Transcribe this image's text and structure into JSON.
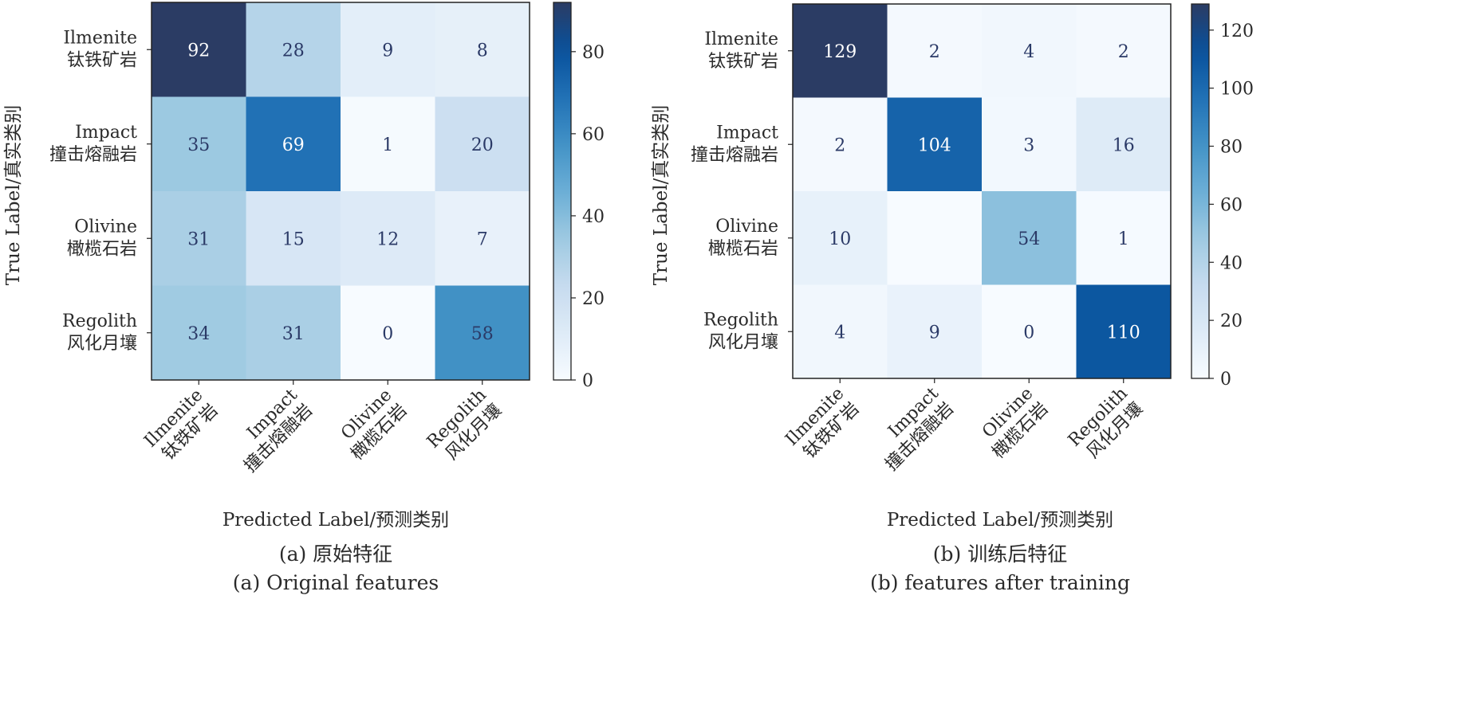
{
  "colormap": {
    "name": "Blues",
    "stops": [
      "#f7fbff",
      "#deebf7",
      "#c6dbef",
      "#9ecae1",
      "#6baed6",
      "#4292c6",
      "#2171b5",
      "#08519c",
      "#08306b"
    ],
    "display_top": "#2b3c64"
  },
  "chart_data": [
    {
      "type": "heatmap",
      "panel": "a",
      "caption_cn": "(a) 原始特征",
      "caption_en": "(a) Original features",
      "ylabel": "True Label/真实类别",
      "xlabel": "Predicted Label/预测类别",
      "rows": [
        {
          "en": "Ilmenite",
          "cn": "钛铁矿岩"
        },
        {
          "en": "Impact",
          "cn": "撞击熔融岩"
        },
        {
          "en": "Olivine",
          "cn": "橄榄石岩"
        },
        {
          "en": "Regolith",
          "cn": "风化月壤"
        }
      ],
      "cols": [
        {
          "en": "Ilmenite",
          "cn": "钛铁矿岩"
        },
        {
          "en": "Impact",
          "cn": "撞击熔融岩"
        },
        {
          "en": "Olivine",
          "cn": "橄榄石岩"
        },
        {
          "en": "Regolith",
          "cn": "风化月壤"
        }
      ],
      "matrix": [
        [
          92,
          28,
          9,
          8
        ],
        [
          35,
          69,
          1,
          20
        ],
        [
          31,
          15,
          12,
          7
        ],
        [
          34,
          31,
          0,
          58
        ]
      ],
      "value_labels": [
        [
          "92",
          "28",
          "9",
          "8"
        ],
        [
          "35",
          "69",
          "1",
          "20"
        ],
        [
          "31",
          "15",
          "12",
          "7"
        ],
        [
          "34",
          "31",
          "0",
          "58"
        ]
      ],
      "colorbar": {
        "min": 0,
        "max": 92,
        "ticks": [
          0,
          20,
          40,
          60,
          80
        ],
        "tick_labels": [
          "0",
          "20",
          "40",
          "60",
          "80"
        ]
      }
    },
    {
      "type": "heatmap",
      "panel": "b",
      "caption_cn": "(b) 训练后特征",
      "caption_en": "(b) features after training",
      "ylabel": "True Label/真实类别",
      "xlabel": "Predicted Label/预测类别",
      "rows": [
        {
          "en": "Ilmenite",
          "cn": "钛铁矿岩"
        },
        {
          "en": "Impact",
          "cn": "撞击熔融岩"
        },
        {
          "en": "Olivine",
          "cn": "橄榄石岩"
        },
        {
          "en": "Regolith",
          "cn": "风化月壤"
        }
      ],
      "cols": [
        {
          "en": "Ilmenite",
          "cn": "钛铁矿岩"
        },
        {
          "en": "Impact",
          "cn": "撞击熔融岩"
        },
        {
          "en": "Olivine",
          "cn": "橄榄石岩"
        },
        {
          "en": "Regolith",
          "cn": "风化月壤"
        }
      ],
      "matrix": [
        [
          129,
          2,
          4,
          2
        ],
        [
          2,
          104,
          3,
          16
        ],
        [
          10,
          0,
          54,
          1
        ],
        [
          4,
          9,
          0,
          110
        ]
      ],
      "value_labels": [
        [
          "129",
          "2",
          "4",
          "2"
        ],
        [
          "2",
          "104",
          "3",
          "16"
        ],
        [
          "10",
          "",
          "54",
          "1"
        ],
        [
          "4",
          "9",
          "0",
          "110"
        ]
      ],
      "colorbar": {
        "min": 0,
        "max": 129,
        "ticks": [
          0,
          20,
          40,
          60,
          80,
          100,
          120
        ],
        "tick_labels": [
          "0",
          "20",
          "40",
          "60",
          "80",
          "100",
          "120"
        ]
      }
    }
  ]
}
